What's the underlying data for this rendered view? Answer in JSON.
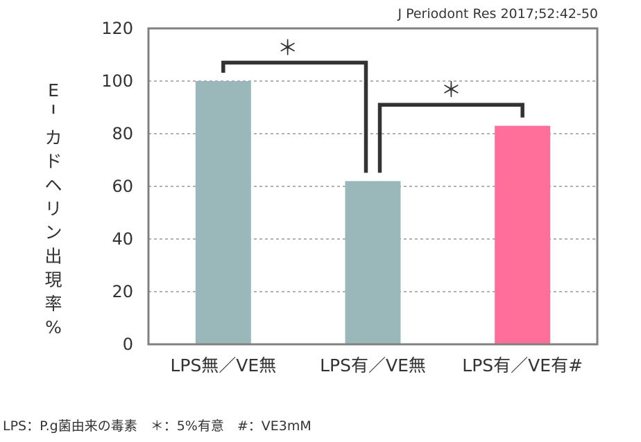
{
  "citation": "J Periodont Res 2017;52:42-50",
  "footnote": "LPS：P.g菌由来の毒素　＊：5%有意　#：VE3mM",
  "colors": {
    "control": "#9ab7ba",
    "treated": "#ff6f9a",
    "frame": "#808080",
    "bracket": "#333333",
    "grid": "#808080"
  },
  "chart_data": {
    "type": "bar",
    "ylabel": "E－カドヘリン出現率%",
    "ylim": [
      0,
      120
    ],
    "yticks": [
      0,
      20,
      40,
      60,
      80,
      100,
      120
    ],
    "grid": "dashed",
    "categories": [
      "LPS無／VE無",
      "LPS有／VE無",
      "LPS有／VE有#"
    ],
    "values": [
      100,
      62,
      83
    ],
    "bar_colors": [
      "#9ab7ba",
      "#9ab7ba",
      "#ff6f9a"
    ],
    "significance": [
      {
        "from": 0,
        "to": 1,
        "label": "＊",
        "level": 107
      },
      {
        "from": 1,
        "to": 2,
        "label": "＊",
        "level": 91
      }
    ]
  }
}
